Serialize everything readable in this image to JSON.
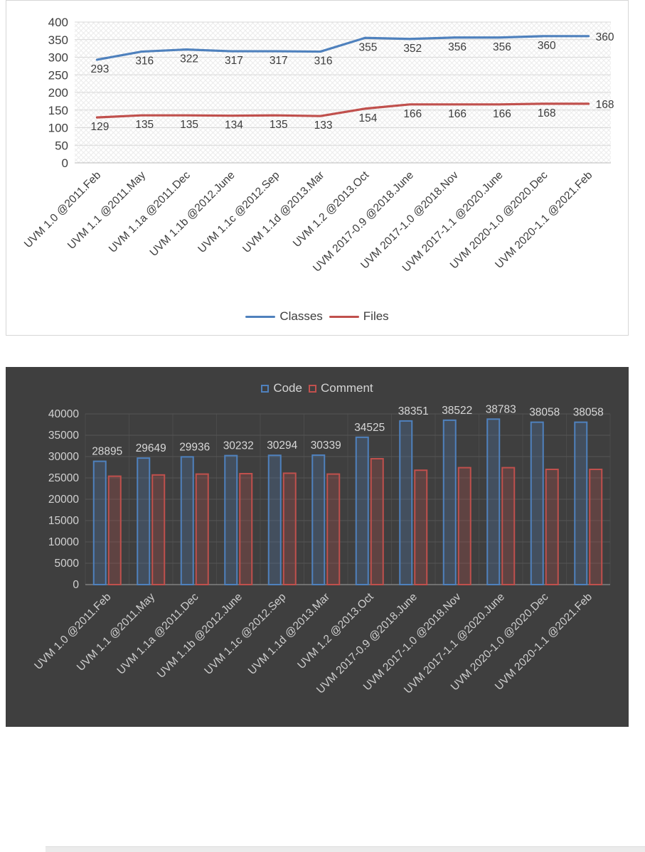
{
  "chart_data": [
    {
      "type": "line",
      "title": "",
      "categories": [
        "UVM 1.0 @2011.Feb",
        "UVM 1.1 @2011.May",
        "UVM 1.1a @2011.Dec",
        "UVM 1.1b @2012.June",
        "UVM 1.1c @2012.Sep",
        "UVM 1.1d @2013.Mar",
        "UVM 1.2 @2013.Oct",
        "UVM 2017-0.9 @2018.June",
        "UVM 2017-1.0 @2018.Nov",
        "UVM 2017-1.1 @2020.June",
        "UVM 2020-1.0 @2020.Dec",
        "UVM 2020-1.1 @2021.Feb"
      ],
      "series": [
        {
          "name": "Classes",
          "color": "#4f81bd",
          "data_labels": true,
          "values": [
            293,
            316,
            322,
            317,
            317,
            316,
            355,
            352,
            356,
            356,
            360,
            360
          ]
        },
        {
          "name": "Files",
          "color": "#c0504d",
          "data_labels": true,
          "values": [
            129,
            135,
            135,
            134,
            135,
            133,
            154,
            166,
            166,
            166,
            168,
            168
          ]
        }
      ],
      "ylim": [
        0,
        400
      ],
      "y_ticks": [
        0,
        50,
        100,
        150,
        200,
        250,
        300,
        350,
        400
      ],
      "grid": true,
      "legend_position": "bottom",
      "plot_background": "hatched",
      "theme": {
        "background": "#ffffff",
        "text": "#3f3f3f",
        "gridline": "#d9d9d9"
      }
    },
    {
      "type": "bar",
      "title": "",
      "categories": [
        "UVM 1.0 @2011.Feb",
        "UVM 1.1 @2011.May",
        "UVM 1.1a @2011.Dec",
        "UVM 1.1b @2012.June",
        "UVM 1.1c @2012.Sep",
        "UVM 1.1d @2013.Mar",
        "UVM 1.2 @2013.Oct",
        "UVM 2017-0.9 @2018.June",
        "UVM 2017-1.0 @2018.Nov",
        "UVM 2017-1.1 @2020.June",
        "UVM 2020-1.0 @2020.Dec",
        "UVM 2020-1.1 @2021.Feb"
      ],
      "series": [
        {
          "name": "Code",
          "color": "#4f81bd",
          "data_labels": true,
          "values": [
            28895,
            29649,
            29936,
            30232,
            30294,
            30339,
            34525,
            38351,
            38522,
            38783,
            38058,
            38058
          ]
        },
        {
          "name": "Comment",
          "color": "#c0504d",
          "data_labels": false,
          "values": [
            25400,
            25700,
            25900,
            26000,
            26100,
            25900,
            29500,
            26800,
            27400,
            27400,
            27000,
            27000
          ]
        }
      ],
      "ylim": [
        0,
        40000
      ],
      "y_ticks": [
        0,
        5000,
        10000,
        15000,
        20000,
        25000,
        30000,
        35000,
        40000
      ],
      "grid": true,
      "legend_position": "top",
      "theme": {
        "background": "#3f3f3f",
        "text": "#d2d2d2",
        "gridline": "#555555",
        "vgridline": "#4b4b4b"
      }
    }
  ]
}
